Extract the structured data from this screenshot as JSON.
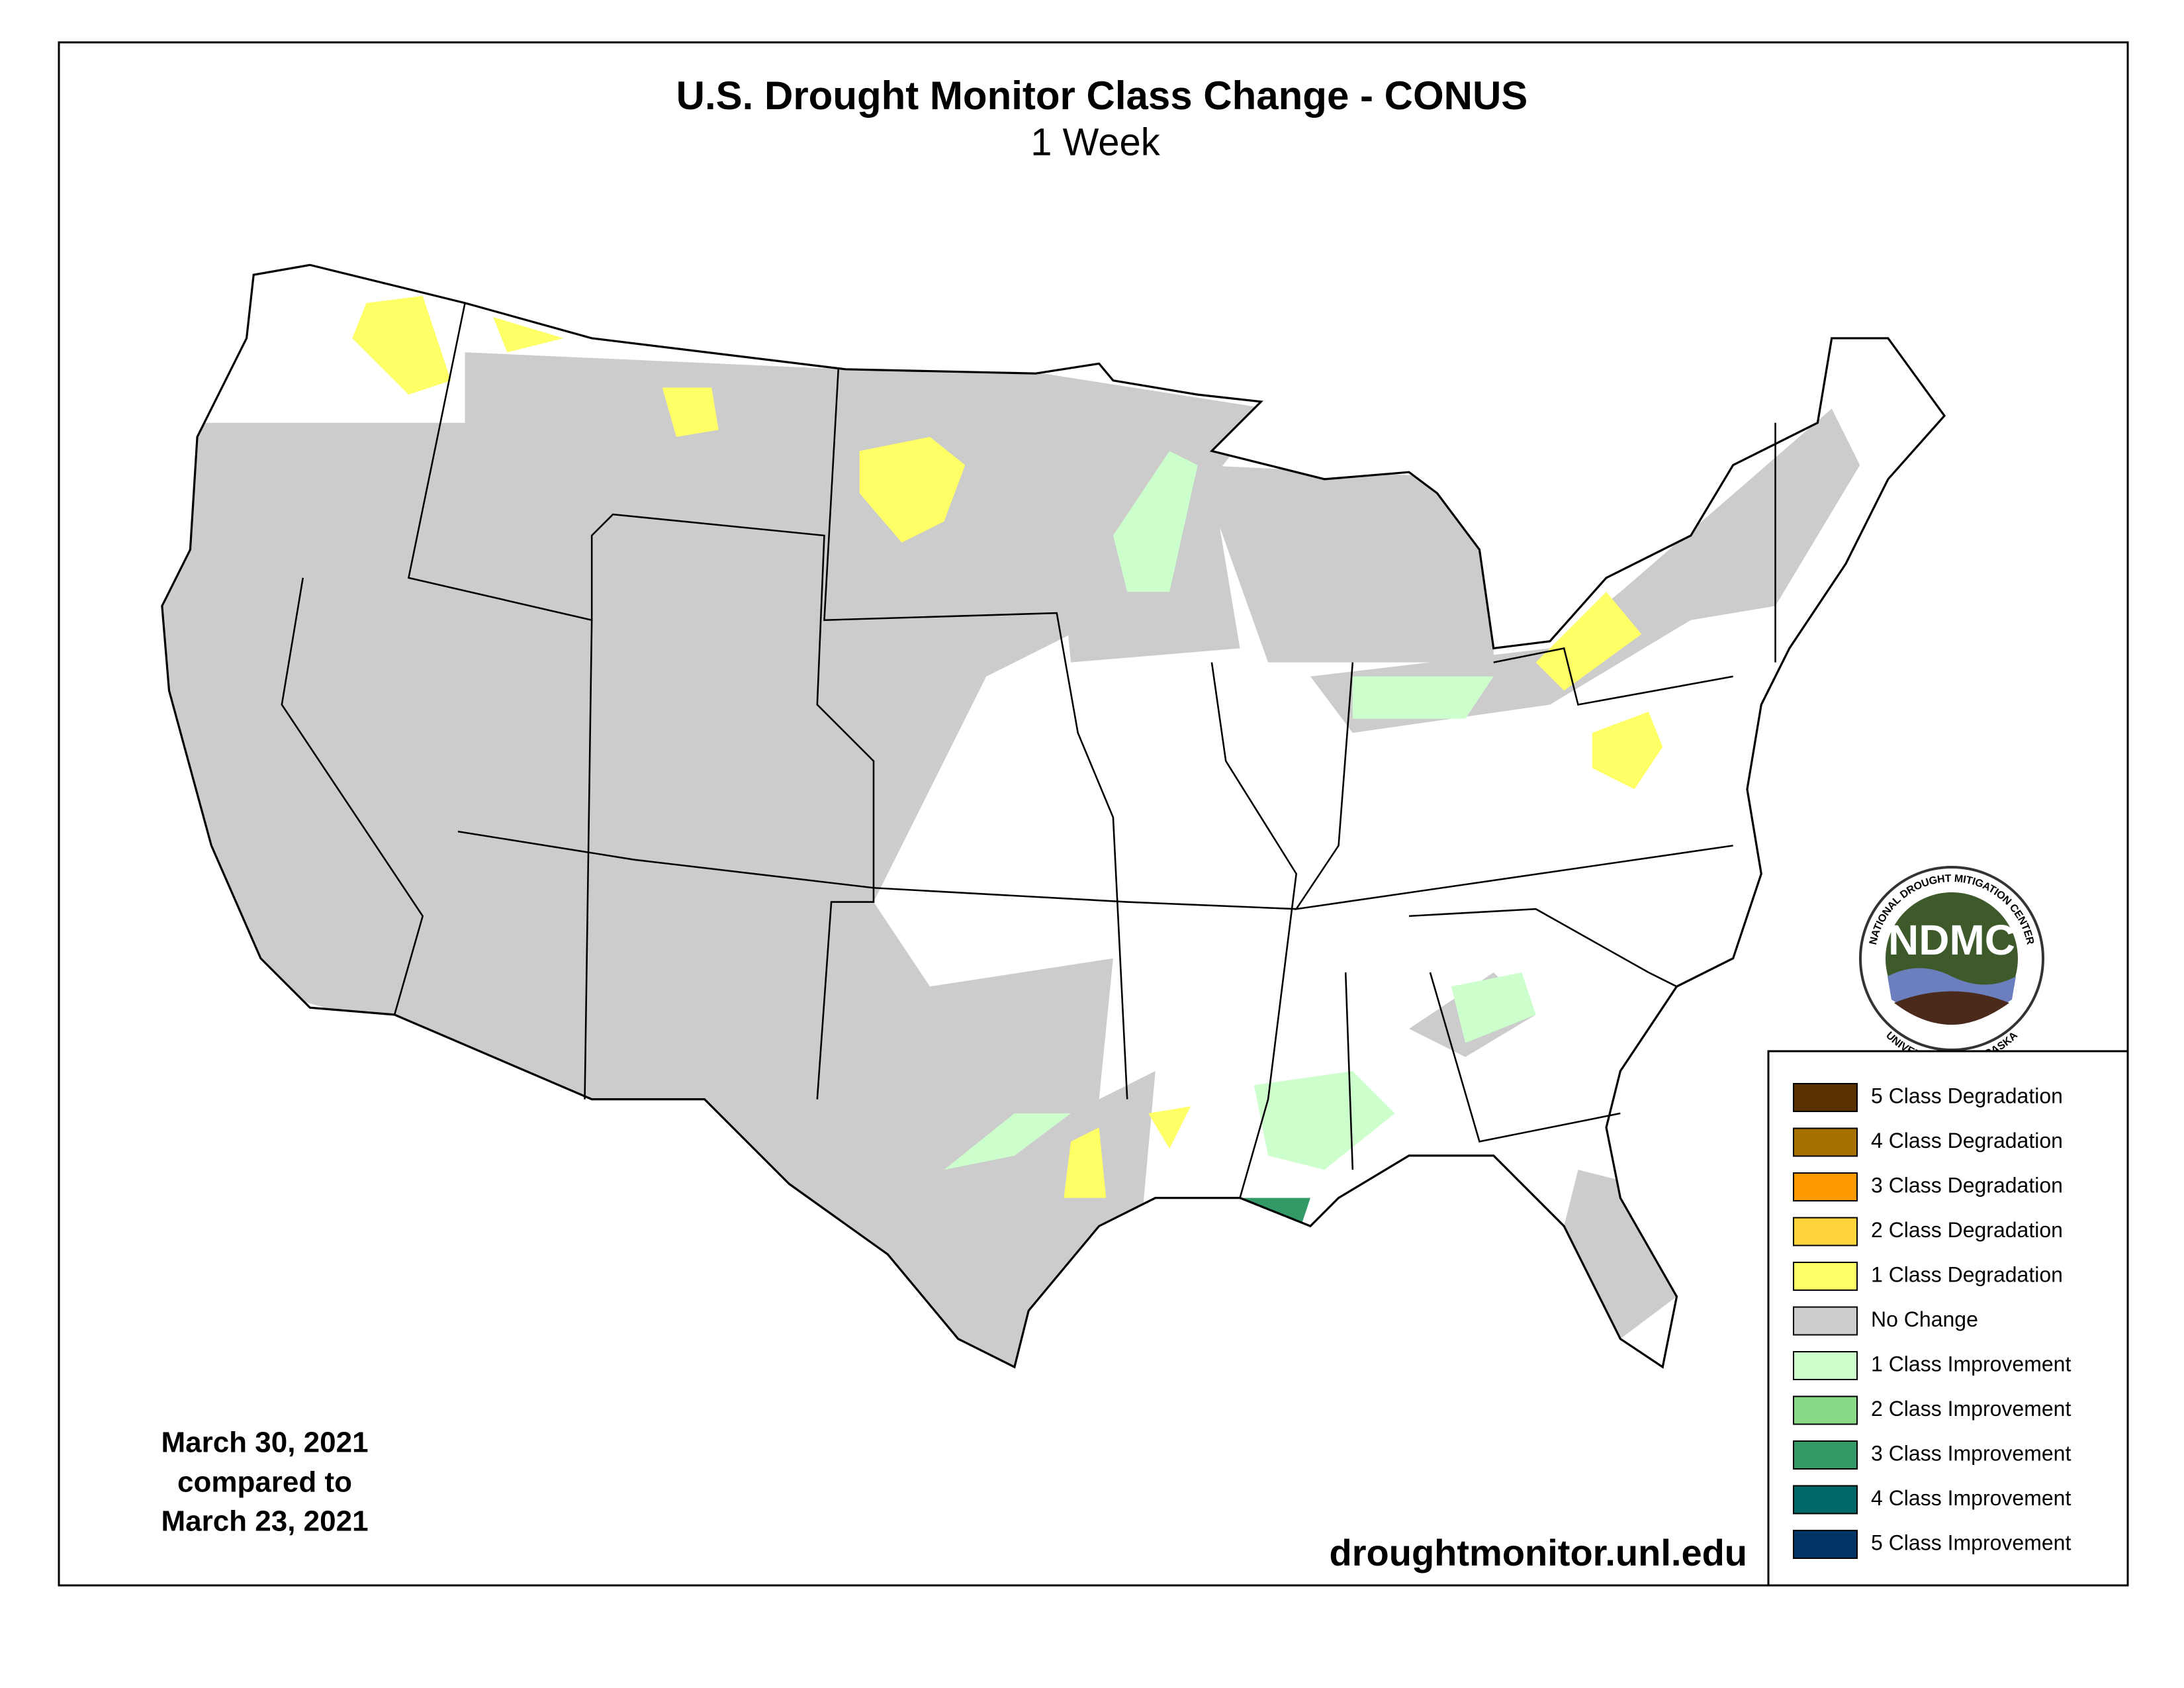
{
  "header": {
    "title": "U.S. Drought Monitor Class Change - CONUS",
    "subtitle": "1 Week"
  },
  "legend": [
    {
      "label": "5 Class Degradation",
      "color": "#5a3000"
    },
    {
      "label": "4 Class Degradation",
      "color": "#a87000"
    },
    {
      "label": "3 Class Degradation",
      "color": "#ff9900"
    },
    {
      "label": "2 Class Degradation",
      "color": "#ffd33c"
    },
    {
      "label": "1 Class Degradation",
      "color": "#ffff66"
    },
    {
      "label": "No Change",
      "color": "#cccccc"
    },
    {
      "label": "1 Class Improvement",
      "color": "#ccffcc"
    },
    {
      "label": "2 Class Improvement",
      "color": "#88d888"
    },
    {
      "label": "3 Class Improvement",
      "color": "#339966"
    },
    {
      "label": "4 Class Improvement",
      "color": "#006666"
    },
    {
      "label": "5 Class Improvement",
      "color": "#003366"
    }
  ],
  "dates": {
    "current": "March 30, 2021",
    "compared": "compared to",
    "previous": "March 23, 2021"
  },
  "url": "droughtmonitor.unl.edu",
  "logo": {
    "name": "NDMC",
    "top_text": "NATIONAL DROUGHT MITIGATION CENTER",
    "bottom_text": "UNIVERSITY OF NEBRASKA"
  }
}
